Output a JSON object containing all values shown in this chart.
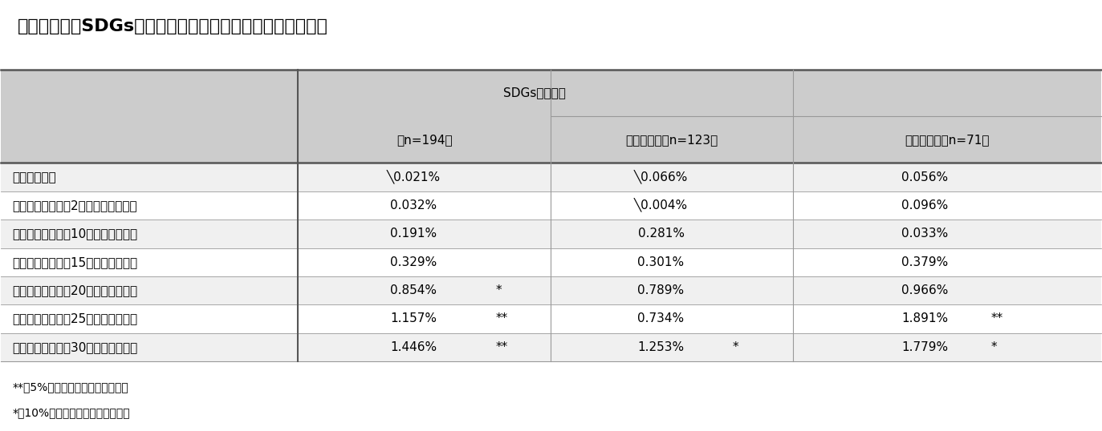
{
  "title": "》図表７》　SDGs関連債務による資金調達後の株価の反応",
  "title_fontsize": 16,
  "header1_text": "SDGs関連債務",
  "header2_col1": "（n=194）",
  "header2_col2": "うち債券　（n=123）",
  "header2_col3": "うち融資　（n=71）",
  "rows": [
    [
      "公表翔営業日",
      "╲0.021%",
      "",
      "╲0.066%",
      "",
      "0.056%",
      ""
    ],
    [
      "公表翔営業日から2営業日　（累計）",
      "0.032%",
      "",
      "╲0.004%",
      "",
      "0.096%",
      ""
    ],
    [
      "公表翔営業日から10営業日（累計）",
      "0.191%",
      "",
      "0.281%",
      "",
      "0.033%",
      ""
    ],
    [
      "公表翔営業日から15営業日（累計）",
      "0.329%",
      "",
      "0.301%",
      "",
      "0.379%",
      ""
    ],
    [
      "公表翔営業日から20営業日（累計）",
      "0.854%",
      "*",
      "0.789%",
      "",
      "0.966%",
      ""
    ],
    [
      "公表翔営業日から25営業日（累計）",
      "1.157%",
      "**",
      "0.734%",
      "",
      "1.891%",
      "**"
    ],
    [
      "公表翔営業日から30営業日（累計）",
      "1.446%",
      "**",
      "1.253%",
      "*",
      "1.779%",
      "*"
    ]
  ],
  "footnote1": "**　5%水準で統計的に有意である",
  "footnote2": "*　10%水準で統計的に有意である",
  "bg_color": "#ffffff",
  "header_bg": "#cccccc",
  "subheader_bg": "#cccccc",
  "row_bg_light": "#f0f0f0",
  "row_bg_white": "#ffffff",
  "border_thick": "#555555",
  "border_thin": "#999999",
  "text_color": "#000000",
  "font_size_title": 16,
  "font_size_header": 11,
  "font_size_data": 11,
  "font_size_footnote": 10
}
